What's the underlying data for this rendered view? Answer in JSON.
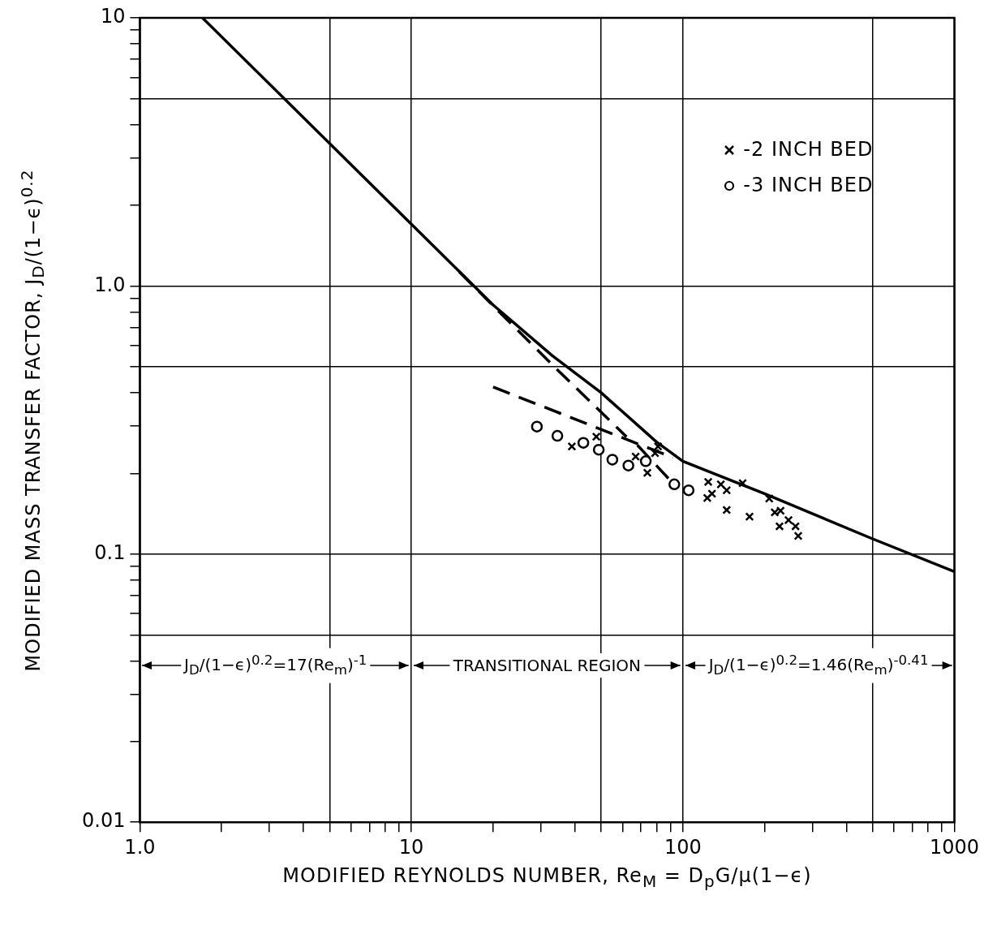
{
  "chart_data": {
    "type": "line",
    "xlabel": "MODIFIED REYNOLDS NUMBER, Re$_{M}$ = D$_{p}$G/μ(1−ϵ)",
    "ylabel": "MODIFIED MASS TRANSFER FACTOR, J$_{D}$/(1−ϵ)$^{0.2}$",
    "annotations": [
      "J$_{D}$/(1−ϵ)$^{0.2}$=17(Re$_{m}$)$^{-1}$",
      "TRANSITIONAL REGION",
      "J$_{D}$/(1−ϵ)$^{0.2}$=1.46(Re$_{m}$)$^{-0.41}$"
    ],
    "log": "xy",
    "grid": true,
    "legend": "top right",
    "xlim": [
      1,
      1000
    ],
    "ylim": [
      0.01,
      10
    ],
    "xticks": [
      {
        "value": 1,
        "label": "1.0"
      },
      {
        "value": 2,
        "label": null
      },
      {
        "value": 3,
        "label": null
      },
      {
        "value": 4,
        "label": null
      },
      {
        "value": 5,
        "label": null
      },
      {
        "value": 6,
        "label": null
      },
      {
        "value": 7,
        "label": null
      },
      {
        "value": 8,
        "label": null
      },
      {
        "value": 9,
        "label": null
      },
      10,
      {
        "value": 20,
        "label": null
      },
      {
        "value": 30,
        "label": null
      },
      {
        "value": 40,
        "label": null
      },
      {
        "value": 50,
        "label": null
      },
      {
        "value": 60,
        "label": null
      },
      {
        "value": 70,
        "label": null
      },
      {
        "value": 80,
        "label": null
      },
      {
        "value": 90,
        "label": null
      },
      100,
      {
        "value": 200,
        "label": null
      },
      {
        "value": 300,
        "label": null
      },
      {
        "value": 400,
        "label": null
      },
      {
        "value": 500,
        "label": null
      },
      {
        "value": 600,
        "label": null
      },
      {
        "value": 700,
        "label": null
      },
      {
        "value": 800,
        "label": null
      },
      {
        "value": 900,
        "label": null
      },
      1000
    ],
    "yticks": [
      0.01,
      {
        "value": 0.02,
        "label": null
      },
      {
        "value": 0.03,
        "label": null
      },
      {
        "value": 0.04,
        "label": null
      },
      {
        "value": 0.05,
        "label": null
      },
      {
        "value": 0.06,
        "label": null
      },
      {
        "value": 0.07,
        "label": null
      },
      {
        "value": 0.08,
        "label": null
      },
      {
        "value": 0.09,
        "label": null
      },
      0.1,
      {
        "value": 0.2,
        "label": null
      },
      {
        "value": 0.3,
        "label": null
      },
      {
        "value": 0.4,
        "label": null
      },
      {
        "value": 0.5,
        "label": null
      },
      {
        "value": 0.6,
        "label": null
      },
      {
        "value": 0.7,
        "label": null
      },
      {
        "value": 0.8,
        "label": null
      },
      {
        "value": 0.9,
        "label": null
      },
      {
        "value": 1,
        "label": "1.0"
      },
      {
        "value": 2,
        "label": null
      },
      {
        "value": 3,
        "label": null
      },
      {
        "value": 4,
        "label": null
      },
      {
        "value": 5,
        "label": null
      },
      {
        "value": 6,
        "label": null
      },
      {
        "value": 7,
        "label": null
      },
      {
        "value": 8,
        "label": null
      },
      {
        "value": 9,
        "label": null
      },
      10
    ],
    "series": [
      {
        "color": "#000000",
        "line_style": "solid",
        "marker": "none",
        "x": [
          1.7,
          10,
          20,
          33,
          50,
          80,
          100,
          200,
          500,
          1000
        ],
        "values": [
          10,
          1.7,
          0.85,
          0.55,
          0.4,
          0.262,
          0.222,
          0.168,
          0.114,
          0.086
        ]
      },
      {
        "color": "#000000",
        "line_style": "dashed",
        "marker": "none",
        "x": [
          15,
          35,
          62
        ],
        "values": [
          1.13,
          0.48,
          0.274
        ]
      },
      {
        "color": "#000000",
        "line_style": "dashed",
        "marker": "none",
        "x": [
          68,
          90
        ],
        "values": [
          0.255,
          0.188
        ]
      },
      {
        "color": "#000000",
        "line_style": "dashed",
        "marker": "none",
        "x": [
          20,
          92
        ],
        "values": [
          0.42,
          0.229
        ]
      },
      {
        "type": "scatter",
        "name": "-2 INCH BED",
        "color": "#000000",
        "marker": "cross",
        "x": [
          39,
          48,
          67,
          74,
          79,
          81,
          124,
          123,
          128,
          138,
          145,
          145,
          166,
          176,
          208,
          218,
          229,
          227,
          245,
          260,
          266
        ],
        "values": [
          0.252,
          0.274,
          0.231,
          0.201,
          0.238,
          0.252,
          0.186,
          0.162,
          0.168,
          0.182,
          0.173,
          0.146,
          0.184,
          0.138,
          0.161,
          0.143,
          0.145,
          0.127,
          0.134,
          0.127,
          0.117
        ]
      },
      {
        "type": "scatter",
        "name": "-3 INCH BED",
        "color": "#000000",
        "marker": "circle",
        "x": [
          29,
          34.5,
          43,
          49,
          55,
          63,
          73,
          93,
          105
        ],
        "values": [
          0.299,
          0.276,
          0.26,
          0.245,
          0.225,
          0.214,
          0.222,
          0.182,
          0.173
        ]
      }
    ]
  }
}
